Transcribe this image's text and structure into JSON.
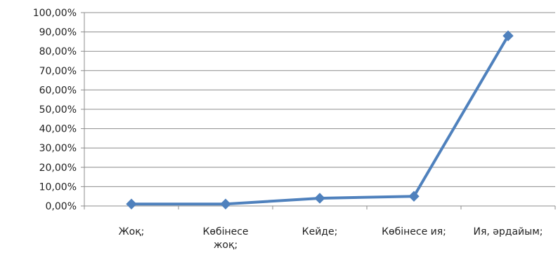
{
  "chart_data": {
    "type": "line",
    "title": "",
    "xlabel": "",
    "ylabel": "",
    "categories": [
      [
        "Жоқ;"
      ],
      [
        "Көбінесе",
        "жоқ;"
      ],
      [
        "Кейде;"
      ],
      [
        "Көбінесе ия;"
      ],
      [
        "Ия, әрдайым;"
      ]
    ],
    "series": [
      {
        "values": [
          1.0,
          1.0,
          4.0,
          5.0,
          88.0
        ]
      }
    ],
    "ylim": [
      0,
      100
    ],
    "yticks": [
      0,
      10,
      20,
      30,
      40,
      50,
      60,
      70,
      80,
      90,
      100
    ],
    "ytick_labels": [
      "0,00%",
      "10,00%",
      "20,00%",
      "30,00%",
      "40,00%",
      "50,00%",
      "60,00%",
      "70,00%",
      "80,00%",
      "90,00%",
      "100,00%"
    ],
    "grid": true,
    "legend": "none",
    "line_color": "#4f81bd",
    "marker": "diamond"
  }
}
